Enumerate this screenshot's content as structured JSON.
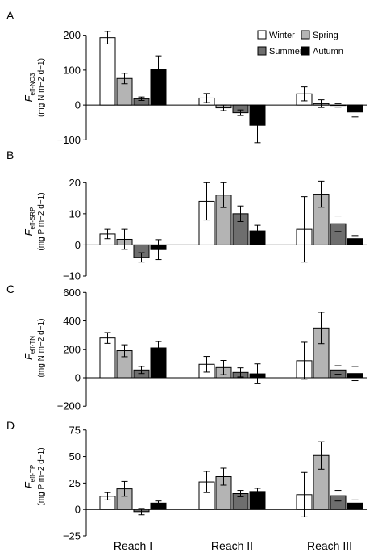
{
  "colors": {
    "Winter": "#ffffff",
    "Spring": "#b4b4b4",
    "Summer": "#6e6e6e",
    "Autumn": "#000000",
    "axis": "#000000"
  },
  "legend": {
    "entries": [
      "Winter",
      "Spring",
      "Summer",
      "Autumn"
    ],
    "placement": "top-right of panel A"
  },
  "chart_data": [
    {
      "type": "bar",
      "panel_label": "A",
      "ylabel_main": "F",
      "ylabel_sub": "eff-NO3",
      "ylabel_units": "(mg N m−2 d−1)",
      "categories": [
        "Reach I",
        "Reach II",
        "Reach III"
      ],
      "ylim": [
        -120,
        220
      ],
      "yticks": [
        -100,
        0,
        100,
        200
      ],
      "yticklabels": [
        "−100",
        "0",
        "100",
        "200"
      ],
      "grid": false,
      "series": [
        {
          "name": "Winter",
          "values": [
            193,
            20,
            32
          ],
          "errors": [
            18,
            13,
            20
          ]
        },
        {
          "name": "Spring",
          "values": [
            76,
            -8,
            4
          ],
          "errors": [
            15,
            8,
            11
          ]
        },
        {
          "name": "Summer",
          "values": [
            18,
            -22,
            -1
          ],
          "errors": [
            5,
            8,
            5
          ]
        },
        {
          "name": "Autumn",
          "values": [
            103,
            -58,
            -20
          ],
          "errors": [
            38,
            50,
            14
          ]
        }
      ]
    },
    {
      "type": "bar",
      "panel_label": "B",
      "ylabel_main": "F",
      "ylabel_sub": "eff-SRP",
      "ylabel_units": "(mg P m−2 d−1)",
      "categories": [
        "Reach I",
        "Reach II",
        "Reach III"
      ],
      "ylim": [
        -10,
        25
      ],
      "yticks": [
        -10,
        0,
        10,
        20
      ],
      "yticklabels": [
        "−10",
        "0",
        "10",
        "20"
      ],
      "grid": false,
      "series": [
        {
          "name": "Winter",
          "values": [
            3.5,
            14,
            5
          ],
          "errors": [
            1.5,
            6,
            10.5
          ]
        },
        {
          "name": "Spring",
          "values": [
            1.8,
            16,
            16.3
          ],
          "errors": [
            3.2,
            4,
            4.2
          ]
        },
        {
          "name": "Summer",
          "values": [
            -4,
            10,
            6.8
          ],
          "errors": [
            1.5,
            2.5,
            2.5
          ]
        },
        {
          "name": "Autumn",
          "values": [
            -1.5,
            4.5,
            2
          ],
          "errors": [
            3.2,
            1.8,
            1
          ]
        }
      ]
    },
    {
      "type": "bar",
      "panel_label": "C",
      "ylabel_main": "F",
      "ylabel_sub": "eff-TN",
      "ylabel_units": "(mg N m−2 d−1)",
      "categories": [
        "Reach I",
        "Reach II",
        "Reach III"
      ],
      "ylim": [
        -210,
        630
      ],
      "yticks": [
        -200,
        0,
        200,
        400,
        600
      ],
      "yticklabels": [
        "−200",
        "0",
        "200",
        "400",
        "600"
      ],
      "grid": false,
      "series": [
        {
          "name": "Winter",
          "values": [
            280,
            95,
            120
          ],
          "errors": [
            38,
            55,
            130
          ]
        },
        {
          "name": "Spring",
          "values": [
            190,
            72,
            350
          ],
          "errors": [
            42,
            50,
            110
          ]
        },
        {
          "name": "Summer",
          "values": [
            55,
            38,
            55
          ],
          "errors": [
            25,
            32,
            30
          ]
        },
        {
          "name": "Autumn",
          "values": [
            210,
            28,
            30
          ],
          "errors": [
            45,
            70,
            50
          ]
        }
      ]
    },
    {
      "type": "bar",
      "panel_label": "D",
      "ylabel_main": "F",
      "ylabel_sub": "eff-TP",
      "ylabel_units": "(mg P m−2 d−1)",
      "categories": [
        "Reach I",
        "Reach II",
        "Reach III"
      ],
      "ylim": [
        -25,
        87
      ],
      "yticks": [
        -25,
        0,
        25,
        50,
        75
      ],
      "yticklabels": [
        "−25",
        "0",
        "25",
        "50",
        "75"
      ],
      "grid": false,
      "series": [
        {
          "name": "Winter",
          "values": [
            12.5,
            26,
            14
          ],
          "errors": [
            3.5,
            10,
            21
          ]
        },
        {
          "name": "Spring",
          "values": [
            19.5,
            31,
            51
          ],
          "errors": [
            7,
            8,
            13
          ]
        },
        {
          "name": "Summer",
          "values": [
            -2,
            15,
            13
          ],
          "errors": [
            3,
            3,
            5
          ]
        },
        {
          "name": "Autumn",
          "values": [
            6,
            17,
            6
          ],
          "errors": [
            2,
            3,
            3
          ]
        }
      ]
    }
  ]
}
